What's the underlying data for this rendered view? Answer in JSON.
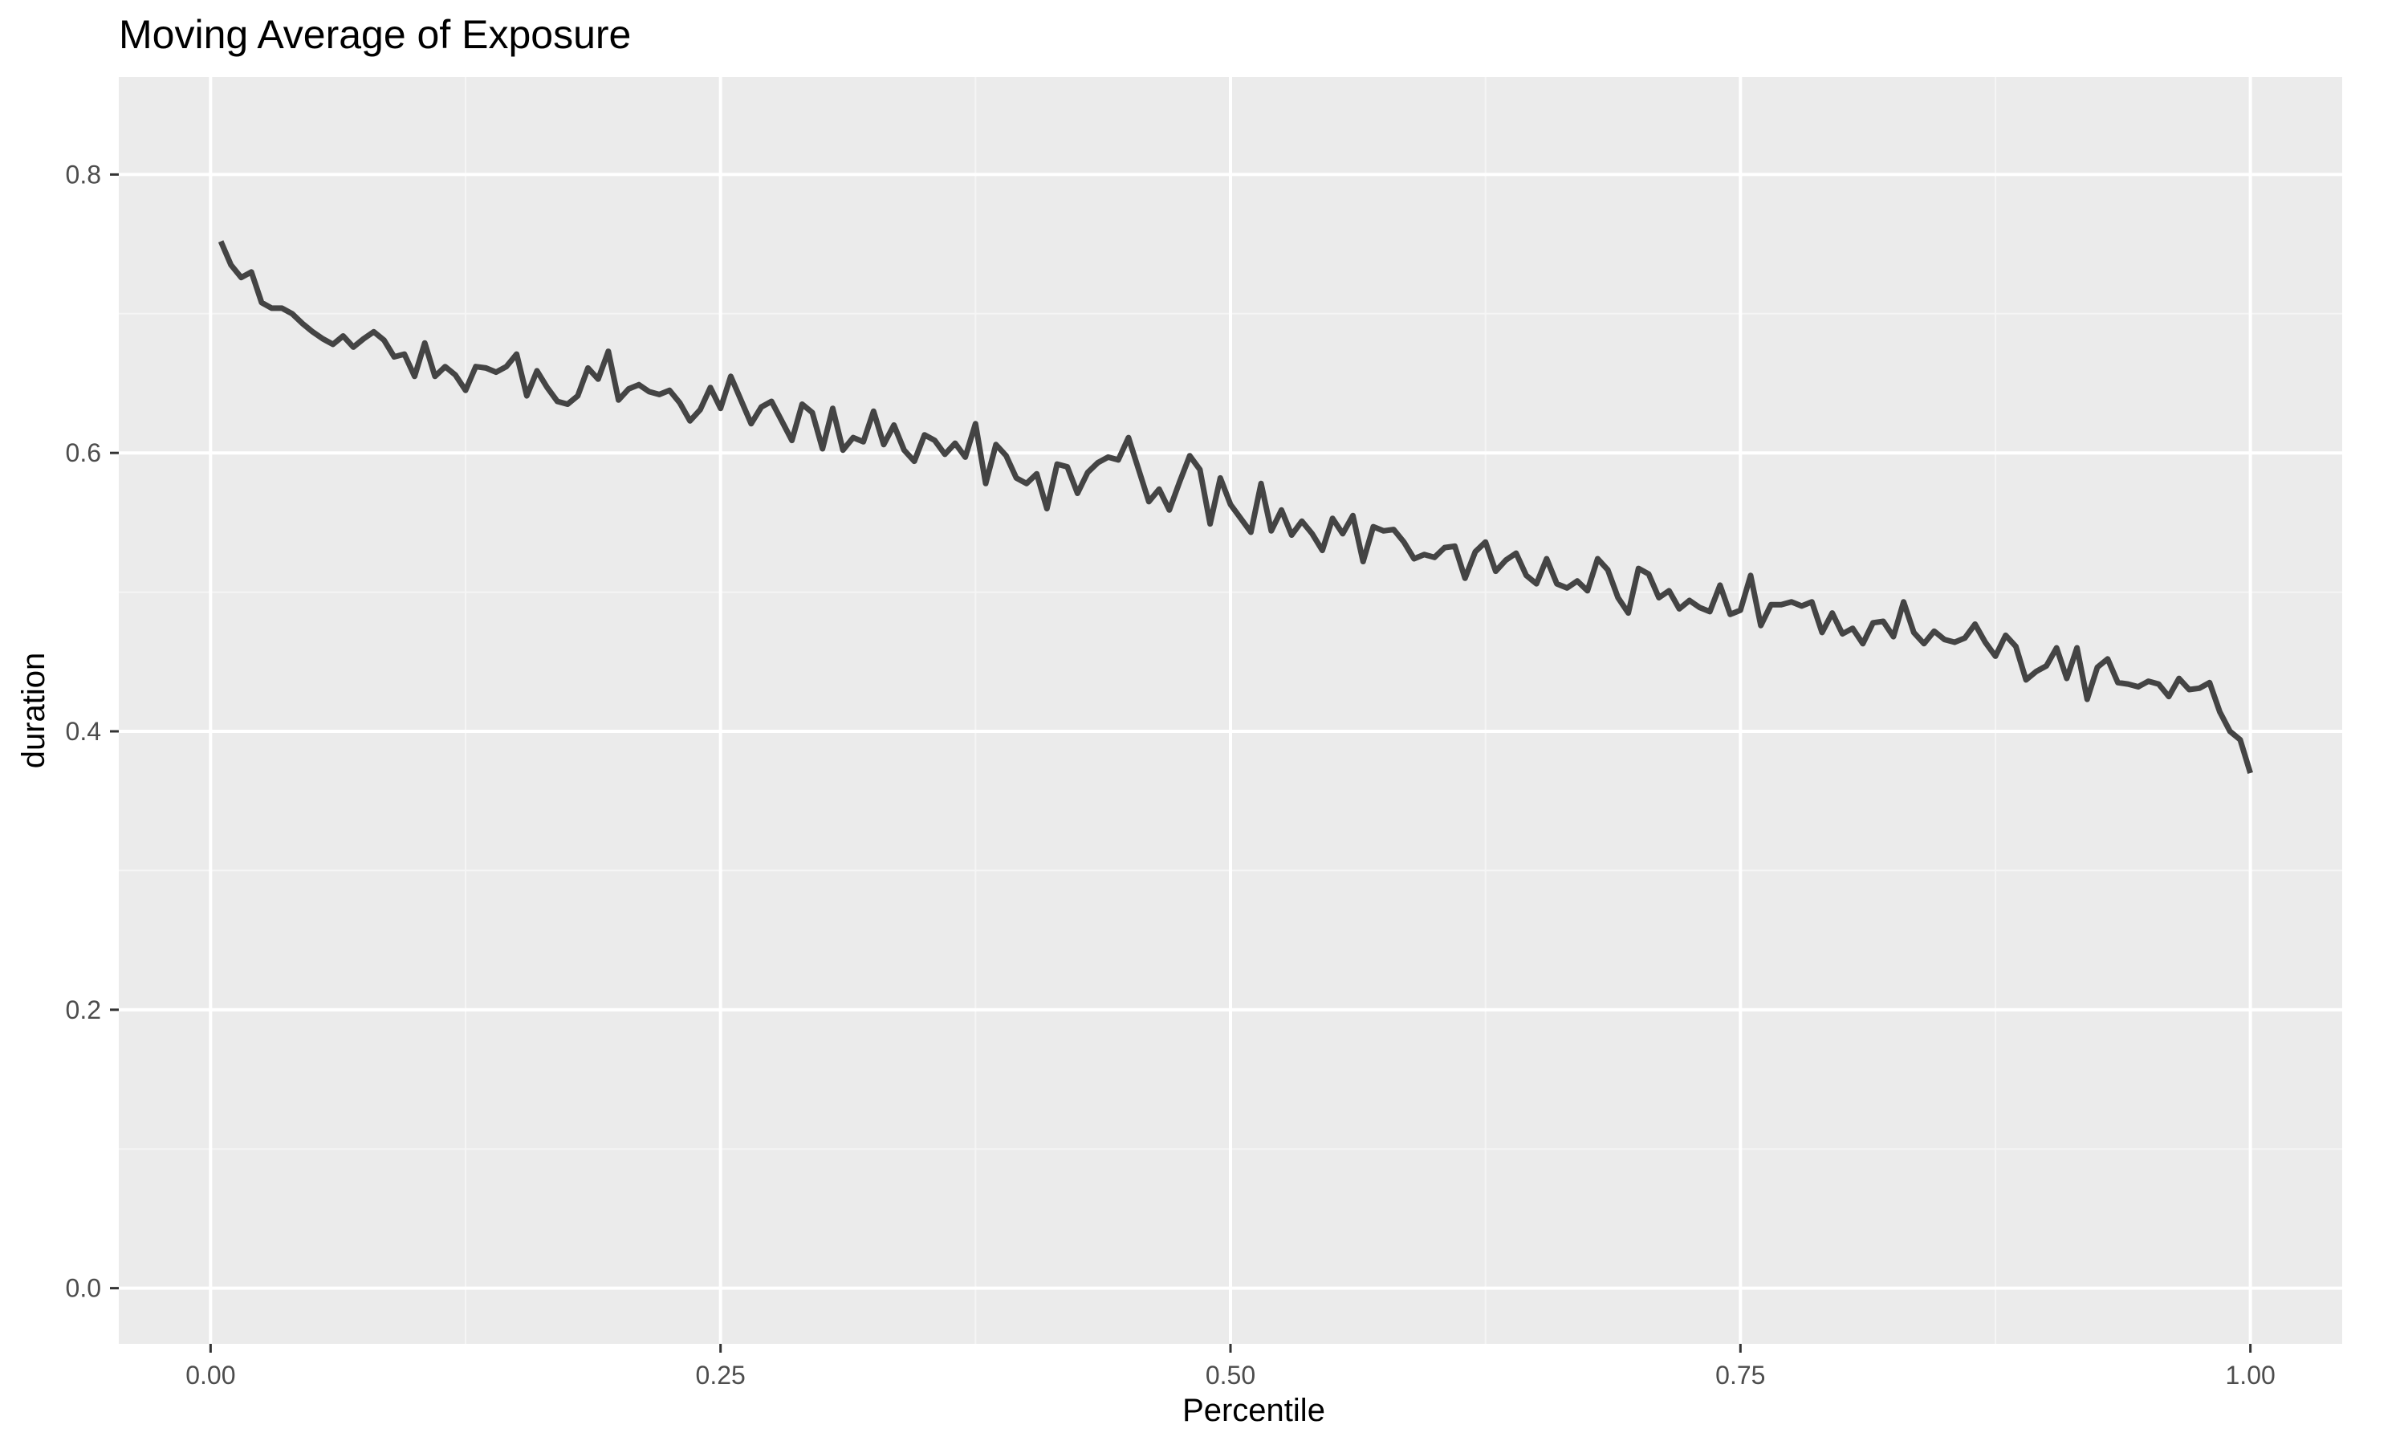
{
  "colors": {
    "panel_background": "#EBEBEB",
    "grid_major": "#FFFFFF",
    "grid_minor": "#F5F5F5",
    "line": "#444444",
    "tick_mark": "#333333",
    "tick_label": "#4D4D4D"
  },
  "chart_data": {
    "type": "line",
    "title": "Moving Average of Exposure",
    "xlabel": "Percentile",
    "ylabel": "duration",
    "xlim": [
      -0.045,
      1.045
    ],
    "ylim": [
      -0.04,
      0.87
    ],
    "x_ticks": [
      0.0,
      0.25,
      0.5,
      0.75,
      1.0
    ],
    "x_tick_labels": [
      "0.00",
      "0.25",
      "0.50",
      "0.75",
      "1.00"
    ],
    "x_minor_ticks": [
      0.125,
      0.375,
      0.625,
      0.875
    ],
    "y_ticks": [
      0.0,
      0.2,
      0.4,
      0.6,
      0.8
    ],
    "y_tick_labels": [
      "0.0",
      "0.2",
      "0.4",
      "0.6",
      "0.8"
    ],
    "y_minor_ticks": [
      0.1,
      0.3,
      0.5,
      0.7
    ],
    "grid": true,
    "legend": "none",
    "series": [
      {
        "points": [
          [
            0.005,
            0.752
          ],
          [
            0.01,
            0.735
          ],
          [
            0.015,
            0.726
          ],
          [
            0.02,
            0.73
          ],
          [
            0.025,
            0.708
          ],
          [
            0.03,
            0.704
          ],
          [
            0.035,
            0.704
          ],
          [
            0.04,
            0.7
          ],
          [
            0.045,
            0.693
          ],
          [
            0.05,
            0.687
          ],
          [
            0.055,
            0.682
          ],
          [
            0.06,
            0.678
          ],
          [
            0.065,
            0.684
          ],
          [
            0.07,
            0.676
          ],
          [
            0.075,
            0.682
          ],
          [
            0.08,
            0.687
          ],
          [
            0.085,
            0.681
          ],
          [
            0.09,
            0.669
          ],
          [
            0.095,
            0.671
          ],
          [
            0.1,
            0.655
          ],
          [
            0.105,
            0.679
          ],
          [
            0.11,
            0.655
          ],
          [
            0.115,
            0.662
          ],
          [
            0.12,
            0.656
          ],
          [
            0.125,
            0.645
          ],
          [
            0.13,
            0.662
          ],
          [
            0.135,
            0.661
          ],
          [
            0.14,
            0.658
          ],
          [
            0.145,
            0.662
          ],
          [
            0.15,
            0.671
          ],
          [
            0.155,
            0.641
          ],
          [
            0.16,
            0.659
          ],
          [
            0.165,
            0.647
          ],
          [
            0.17,
            0.637
          ],
          [
            0.175,
            0.635
          ],
          [
            0.18,
            0.641
          ],
          [
            0.185,
            0.661
          ],
          [
            0.19,
            0.653
          ],
          [
            0.195,
            0.673
          ],
          [
            0.2,
            0.638
          ],
          [
            0.205,
            0.646
          ],
          [
            0.21,
            0.649
          ],
          [
            0.215,
            0.644
          ],
          [
            0.22,
            0.642
          ],
          [
            0.225,
            0.645
          ],
          [
            0.23,
            0.636
          ],
          [
            0.235,
            0.623
          ],
          [
            0.24,
            0.631
          ],
          [
            0.245,
            0.647
          ],
          [
            0.25,
            0.632
          ],
          [
            0.255,
            0.655
          ],
          [
            0.26,
            0.638
          ],
          [
            0.265,
            0.621
          ],
          [
            0.27,
            0.633
          ],
          [
            0.275,
            0.637
          ],
          [
            0.28,
            0.623
          ],
          [
            0.285,
            0.609
          ],
          [
            0.29,
            0.635
          ],
          [
            0.295,
            0.629
          ],
          [
            0.3,
            0.603
          ],
          [
            0.305,
            0.632
          ],
          [
            0.31,
            0.602
          ],
          [
            0.315,
            0.611
          ],
          [
            0.32,
            0.608
          ],
          [
            0.325,
            0.63
          ],
          [
            0.33,
            0.606
          ],
          [
            0.335,
            0.62
          ],
          [
            0.34,
            0.602
          ],
          [
            0.345,
            0.594
          ],
          [
            0.35,
            0.613
          ],
          [
            0.355,
            0.609
          ],
          [
            0.36,
            0.599
          ],
          [
            0.365,
            0.607
          ],
          [
            0.37,
            0.597
          ],
          [
            0.375,
            0.621
          ],
          [
            0.38,
            0.578
          ],
          [
            0.385,
            0.606
          ],
          [
            0.39,
            0.598
          ],
          [
            0.395,
            0.582
          ],
          [
            0.4,
            0.578
          ],
          [
            0.405,
            0.585
          ],
          [
            0.41,
            0.56
          ],
          [
            0.415,
            0.592
          ],
          [
            0.42,
            0.59
          ],
          [
            0.425,
            0.571
          ],
          [
            0.43,
            0.586
          ],
          [
            0.435,
            0.593
          ],
          [
            0.44,
            0.597
          ],
          [
            0.445,
            0.595
          ],
          [
            0.45,
            0.611
          ],
          [
            0.455,
            0.588
          ],
          [
            0.46,
            0.565
          ],
          [
            0.465,
            0.574
          ],
          [
            0.47,
            0.559
          ],
          [
            0.475,
            0.579
          ],
          [
            0.48,
            0.598
          ],
          [
            0.485,
            0.588
          ],
          [
            0.49,
            0.549
          ],
          [
            0.495,
            0.582
          ],
          [
            0.5,
            0.563
          ],
          [
            0.505,
            0.553
          ],
          [
            0.51,
            0.543
          ],
          [
            0.515,
            0.578
          ],
          [
            0.52,
            0.544
          ],
          [
            0.525,
            0.559
          ],
          [
            0.53,
            0.541
          ],
          [
            0.535,
            0.551
          ],
          [
            0.54,
            0.542
          ],
          [
            0.545,
            0.53
          ],
          [
            0.55,
            0.553
          ],
          [
            0.555,
            0.542
          ],
          [
            0.56,
            0.555
          ],
          [
            0.565,
            0.522
          ],
          [
            0.57,
            0.547
          ],
          [
            0.575,
            0.544
          ],
          [
            0.58,
            0.545
          ],
          [
            0.585,
            0.536
          ],
          [
            0.59,
            0.524
          ],
          [
            0.595,
            0.527
          ],
          [
            0.6,
            0.525
          ],
          [
            0.605,
            0.532
          ],
          [
            0.61,
            0.533
          ],
          [
            0.615,
            0.51
          ],
          [
            0.62,
            0.529
          ],
          [
            0.625,
            0.536
          ],
          [
            0.63,
            0.515
          ],
          [
            0.635,
            0.523
          ],
          [
            0.64,
            0.528
          ],
          [
            0.645,
            0.512
          ],
          [
            0.65,
            0.506
          ],
          [
            0.655,
            0.524
          ],
          [
            0.66,
            0.506
          ],
          [
            0.665,
            0.503
          ],
          [
            0.67,
            0.508
          ],
          [
            0.675,
            0.501
          ],
          [
            0.68,
            0.524
          ],
          [
            0.685,
            0.516
          ],
          [
            0.69,
            0.496
          ],
          [
            0.695,
            0.485
          ],
          [
            0.7,
            0.517
          ],
          [
            0.705,
            0.513
          ],
          [
            0.71,
            0.496
          ],
          [
            0.715,
            0.501
          ],
          [
            0.72,
            0.488
          ],
          [
            0.725,
            0.494
          ],
          [
            0.73,
            0.489
          ],
          [
            0.735,
            0.486
          ],
          [
            0.74,
            0.505
          ],
          [
            0.745,
            0.484
          ],
          [
            0.75,
            0.487
          ],
          [
            0.755,
            0.512
          ],
          [
            0.76,
            0.476
          ],
          [
            0.765,
            0.491
          ],
          [
            0.77,
            0.491
          ],
          [
            0.775,
            0.493
          ],
          [
            0.78,
            0.49
          ],
          [
            0.785,
            0.493
          ],
          [
            0.79,
            0.471
          ],
          [
            0.795,
            0.485
          ],
          [
            0.8,
            0.47
          ],
          [
            0.805,
            0.474
          ],
          [
            0.81,
            0.463
          ],
          [
            0.815,
            0.478
          ],
          [
            0.82,
            0.479
          ],
          [
            0.825,
            0.468
          ],
          [
            0.83,
            0.493
          ],
          [
            0.835,
            0.471
          ],
          [
            0.84,
            0.463
          ],
          [
            0.845,
            0.472
          ],
          [
            0.85,
            0.466
          ],
          [
            0.855,
            0.464
          ],
          [
            0.86,
            0.467
          ],
          [
            0.865,
            0.477
          ],
          [
            0.87,
            0.464
          ],
          [
            0.875,
            0.454
          ],
          [
            0.88,
            0.469
          ],
          [
            0.885,
            0.461
          ],
          [
            0.89,
            0.437
          ],
          [
            0.895,
            0.443
          ],
          [
            0.9,
            0.447
          ],
          [
            0.905,
            0.46
          ],
          [
            0.91,
            0.438
          ],
          [
            0.915,
            0.46
          ],
          [
            0.92,
            0.423
          ],
          [
            0.925,
            0.446
          ],
          [
            0.93,
            0.452
          ],
          [
            0.935,
            0.435
          ],
          [
            0.94,
            0.434
          ],
          [
            0.945,
            0.432
          ],
          [
            0.95,
            0.436
          ],
          [
            0.955,
            0.434
          ],
          [
            0.96,
            0.425
          ],
          [
            0.965,
            0.438
          ],
          [
            0.97,
            0.43
          ],
          [
            0.975,
            0.431
          ],
          [
            0.98,
            0.435
          ],
          [
            0.985,
            0.414
          ],
          [
            0.99,
            0.4
          ],
          [
            0.995,
            0.394
          ],
          [
            1.0,
            0.37
          ]
        ]
      }
    ]
  }
}
